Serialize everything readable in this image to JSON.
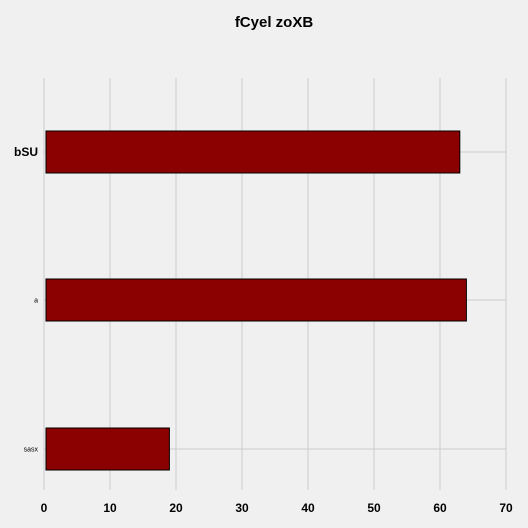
{
  "chart_data": {
    "type": "bar",
    "orientation": "horizontal",
    "title": "fCyel zoXB",
    "xlabel": "",
    "ylabel": "",
    "categories": [
      "bSU",
      "a",
      "sasx"
    ],
    "values": [
      63,
      64,
      19
    ],
    "xlim": [
      0,
      70
    ],
    "x_ticks": [
      0,
      10,
      20,
      30,
      40,
      50,
      60,
      70
    ],
    "grid": true,
    "legend": "none",
    "colors": {
      "bar_fill": "#8b0000",
      "bar_edge": "#000000",
      "grid": "#cbcbcb",
      "background": "#f0f0f0"
    }
  }
}
